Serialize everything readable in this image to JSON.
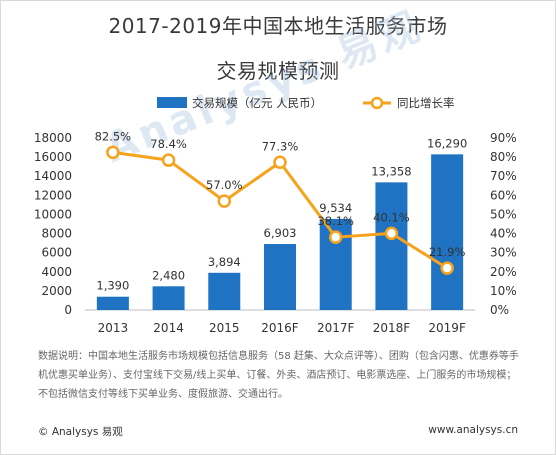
{
  "page": {
    "watermark": "Analysys 易观",
    "note": "数据说明：中国本地生活服务市场规模包括信息服务（58 赶集、大众点评等）、团购（包含闪惠、优惠券等手机优惠买单业务）、支付宝线下交易/线上买单、订餐、外卖、酒店预订、电影票选座、上门服务的市场规模；不包括微信支付等线下买单业务、度假旅游、交通出行。",
    "footer_left": "© Analysys 易观",
    "footer_right": "www.analysys.cn"
  },
  "chart_data": {
    "type": "bar",
    "title_line1": "2017-2019年中国本地生活服务市场",
    "title_line2": "交易规模预测",
    "categories": [
      "2013",
      "2014",
      "2015",
      "2016F",
      "2017F",
      "2018F",
      "2019F"
    ],
    "series": [
      {
        "name": "交易规模（亿元 人民币）",
        "type": "bar",
        "axis": "left",
        "values": [
          1390,
          2480,
          3894,
          6903,
          9534,
          13358,
          16290
        ],
        "labels": [
          "1,390",
          "2,480",
          "3,894",
          "6,903",
          "9,534",
          "13,358",
          "16,290"
        ]
      },
      {
        "name": "同比增长率",
        "type": "line",
        "axis": "right",
        "values": [
          82.5,
          78.4,
          57.0,
          77.3,
          38.1,
          40.1,
          21.9
        ],
        "labels": [
          "82.5%",
          "78.4%",
          "57.0%",
          "77.3%",
          "38.1%",
          "40.1%",
          "21.9%"
        ]
      }
    ],
    "y_left": {
      "min": 0,
      "max": 18000,
      "step": 2000
    },
    "y_right": {
      "min": 0,
      "max": 90,
      "step": 10,
      "suffix": "%"
    },
    "colors": {
      "bar": "#1f73c2",
      "line": "#f7a21b",
      "marker_fill": "#ffffff"
    },
    "legend_position": "top",
    "grid": false
  }
}
